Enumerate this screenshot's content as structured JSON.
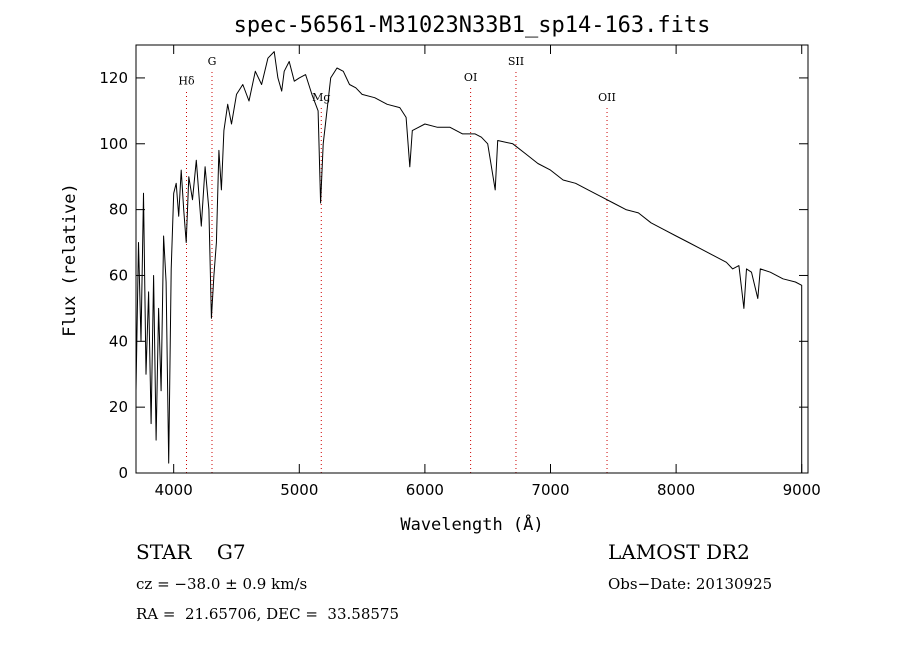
{
  "chart_data": {
    "type": "line",
    "title": "spec-56561-M31023N33B1_sp14-163.fits",
    "xlabel": "Wavelength (Å)",
    "ylabel": "Flux (relative)",
    "xlim": [
      3700,
      9050
    ],
    "ylim": [
      0,
      130
    ],
    "x_ticks": [
      4000,
      5000,
      6000,
      7000,
      8000,
      9000
    ],
    "y_ticks": [
      0,
      20,
      40,
      60,
      80,
      100,
      120
    ],
    "line_color": "#000000",
    "marker_color": "#cc0000",
    "series": [
      {
        "name": "flux",
        "points": [
          [
            3700,
            25
          ],
          [
            3720,
            70
          ],
          [
            3740,
            40
          ],
          [
            3760,
            85
          ],
          [
            3780,
            30
          ],
          [
            3800,
            55
          ],
          [
            3820,
            15
          ],
          [
            3840,
            60
          ],
          [
            3860,
            10
          ],
          [
            3880,
            50
          ],
          [
            3900,
            25
          ],
          [
            3920,
            72
          ],
          [
            3940,
            58
          ],
          [
            3960,
            3
          ],
          [
            3980,
            62
          ],
          [
            4000,
            85
          ],
          [
            4020,
            88
          ],
          [
            4040,
            78
          ],
          [
            4060,
            92
          ],
          [
            4080,
            80
          ],
          [
            4100,
            70
          ],
          [
            4120,
            90
          ],
          [
            4150,
            83
          ],
          [
            4180,
            95
          ],
          [
            4200,
            85
          ],
          [
            4220,
            75
          ],
          [
            4250,
            93
          ],
          [
            4280,
            80
          ],
          [
            4300,
            47
          ],
          [
            4320,
            60
          ],
          [
            4340,
            70
          ],
          [
            4360,
            98
          ],
          [
            4380,
            86
          ],
          [
            4400,
            104
          ],
          [
            4430,
            112
          ],
          [
            4460,
            106
          ],
          [
            4500,
            115
          ],
          [
            4550,
            118
          ],
          [
            4600,
            113
          ],
          [
            4650,
            122
          ],
          [
            4700,
            118
          ],
          [
            4750,
            126
          ],
          [
            4800,
            128
          ],
          [
            4830,
            120
          ],
          [
            4860,
            116
          ],
          [
            4880,
            122
          ],
          [
            4920,
            125
          ],
          [
            4960,
            119
          ],
          [
            5000,
            120
          ],
          [
            5050,
            121
          ],
          [
            5100,
            115
          ],
          [
            5150,
            110
          ],
          [
            5170,
            82
          ],
          [
            5190,
            100
          ],
          [
            5250,
            120
          ],
          [
            5300,
            123
          ],
          [
            5350,
            122
          ],
          [
            5400,
            118
          ],
          [
            5450,
            117
          ],
          [
            5500,
            115
          ],
          [
            5600,
            114
          ],
          [
            5700,
            112
          ],
          [
            5800,
            111
          ],
          [
            5850,
            108
          ],
          [
            5880,
            93
          ],
          [
            5900,
            104
          ],
          [
            6000,
            106
          ],
          [
            6100,
            105
          ],
          [
            6200,
            105
          ],
          [
            6300,
            103
          ],
          [
            6400,
            103
          ],
          [
            6450,
            102
          ],
          [
            6500,
            100
          ],
          [
            6560,
            86
          ],
          [
            6580,
            101
          ],
          [
            6700,
            100
          ],
          [
            6800,
            97
          ],
          [
            6900,
            94
          ],
          [
            7000,
            92
          ],
          [
            7100,
            89
          ],
          [
            7200,
            88
          ],
          [
            7300,
            86
          ],
          [
            7400,
            84
          ],
          [
            7500,
            82
          ],
          [
            7600,
            80
          ],
          [
            7700,
            79
          ],
          [
            7800,
            76
          ],
          [
            7900,
            74
          ],
          [
            8000,
            72
          ],
          [
            8100,
            70
          ],
          [
            8200,
            68
          ],
          [
            8300,
            66
          ],
          [
            8400,
            64
          ],
          [
            8450,
            62
          ],
          [
            8500,
            63
          ],
          [
            8540,
            50
          ],
          [
            8560,
            62
          ],
          [
            8600,
            61
          ],
          [
            8650,
            53
          ],
          [
            8670,
            62
          ],
          [
            8750,
            61
          ],
          [
            8850,
            59
          ],
          [
            8950,
            58
          ],
          [
            9000,
            57
          ],
          [
            9000,
            0
          ]
        ]
      }
    ],
    "markers": [
      {
        "label": "Hδ",
        "x": 4102,
        "label_y": 118
      },
      {
        "label": "G",
        "x": 4305,
        "label_y": 124
      },
      {
        "label": "Mg",
        "x": 5175,
        "label_y": 113
      },
      {
        "label": "OI",
        "x": 6364,
        "label_y": 119
      },
      {
        "label": "SII",
        "x": 6725,
        "label_y": 124
      },
      {
        "label": "OII",
        "x": 7450,
        "label_y": 113
      }
    ]
  },
  "info": {
    "object_type": "STAR    G7",
    "cz": "cz = −38.0 ± 0.9 km/s",
    "ra_dec": "RA =  21.65706, DEC =  33.58575",
    "survey": "LAMOST DR2",
    "obs_date": "Obs−Date: 20130925"
  }
}
